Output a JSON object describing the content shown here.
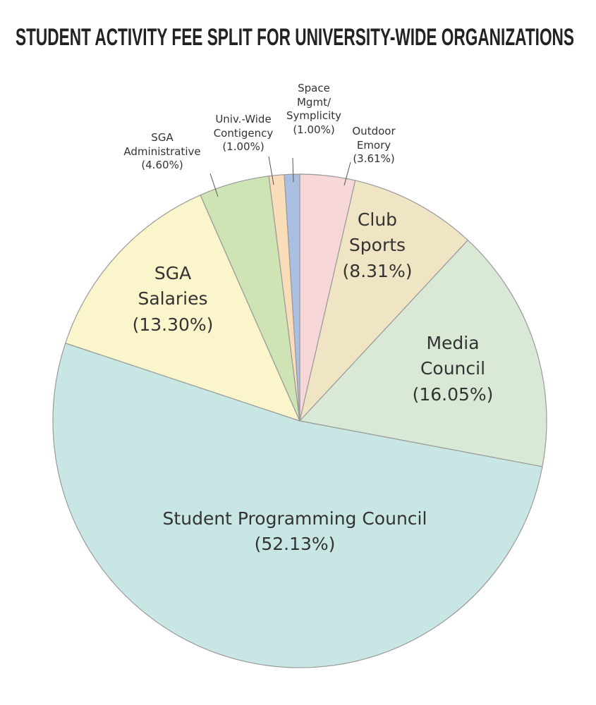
{
  "chart_data": {
    "type": "pie",
    "title": "STUDENT ACTIVITY FEE SPLIT FOR UNIVERSITY-WIDE ORGANIZATIONS",
    "categories": [
      "Outdoor\nEmory",
      "Club\nSports",
      "Media\nCouncil",
      "Student Programming Council",
      "SGA\nSalaries",
      "SGA\nAdministrative",
      "Univ.-Wide\nContigency",
      "Space\nMgmt/\nSymplicity"
    ],
    "values": [
      3.61,
      8.31,
      16.05,
      52.13,
      13.3,
      4.6,
      1.0,
      1.0
    ],
    "value_labels": [
      "(3.61%)",
      "(8.31%)",
      "(16.05%)",
      "(52.13%)",
      "(13.30%)",
      "(4.60%)",
      "(1.00%)",
      "(1.00%)"
    ],
    "colors": [
      "#f8d7d9",
      "#efe5c4",
      "#d9e9d6",
      "#c8e6e3",
      "#fbf5cb",
      "#cfe4b4",
      "#f9ddb9",
      "#a9bee0"
    ]
  }
}
